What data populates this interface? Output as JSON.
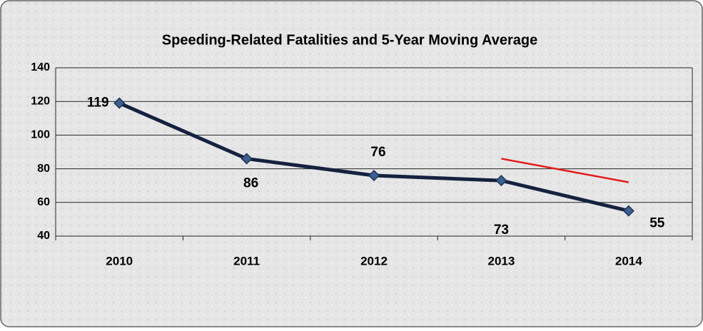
{
  "chart_data": {
    "type": "line",
    "title": "Speeding-Related Fatalities and 5-Year Moving Average",
    "categories": [
      "2010",
      "2011",
      "2012",
      "2013",
      "2014"
    ],
    "series": [
      {
        "color": "#15213f",
        "values": [
          119,
          86,
          76,
          73,
          55
        ]
      },
      {
        "color": "#e31b1b",
        "values": [
          null,
          null,
          null,
          86,
          72
        ]
      }
    ],
    "ylim": [
      40,
      140
    ],
    "yticks": [
      40,
      60,
      80,
      100,
      120,
      140
    ],
    "grid": true
  }
}
